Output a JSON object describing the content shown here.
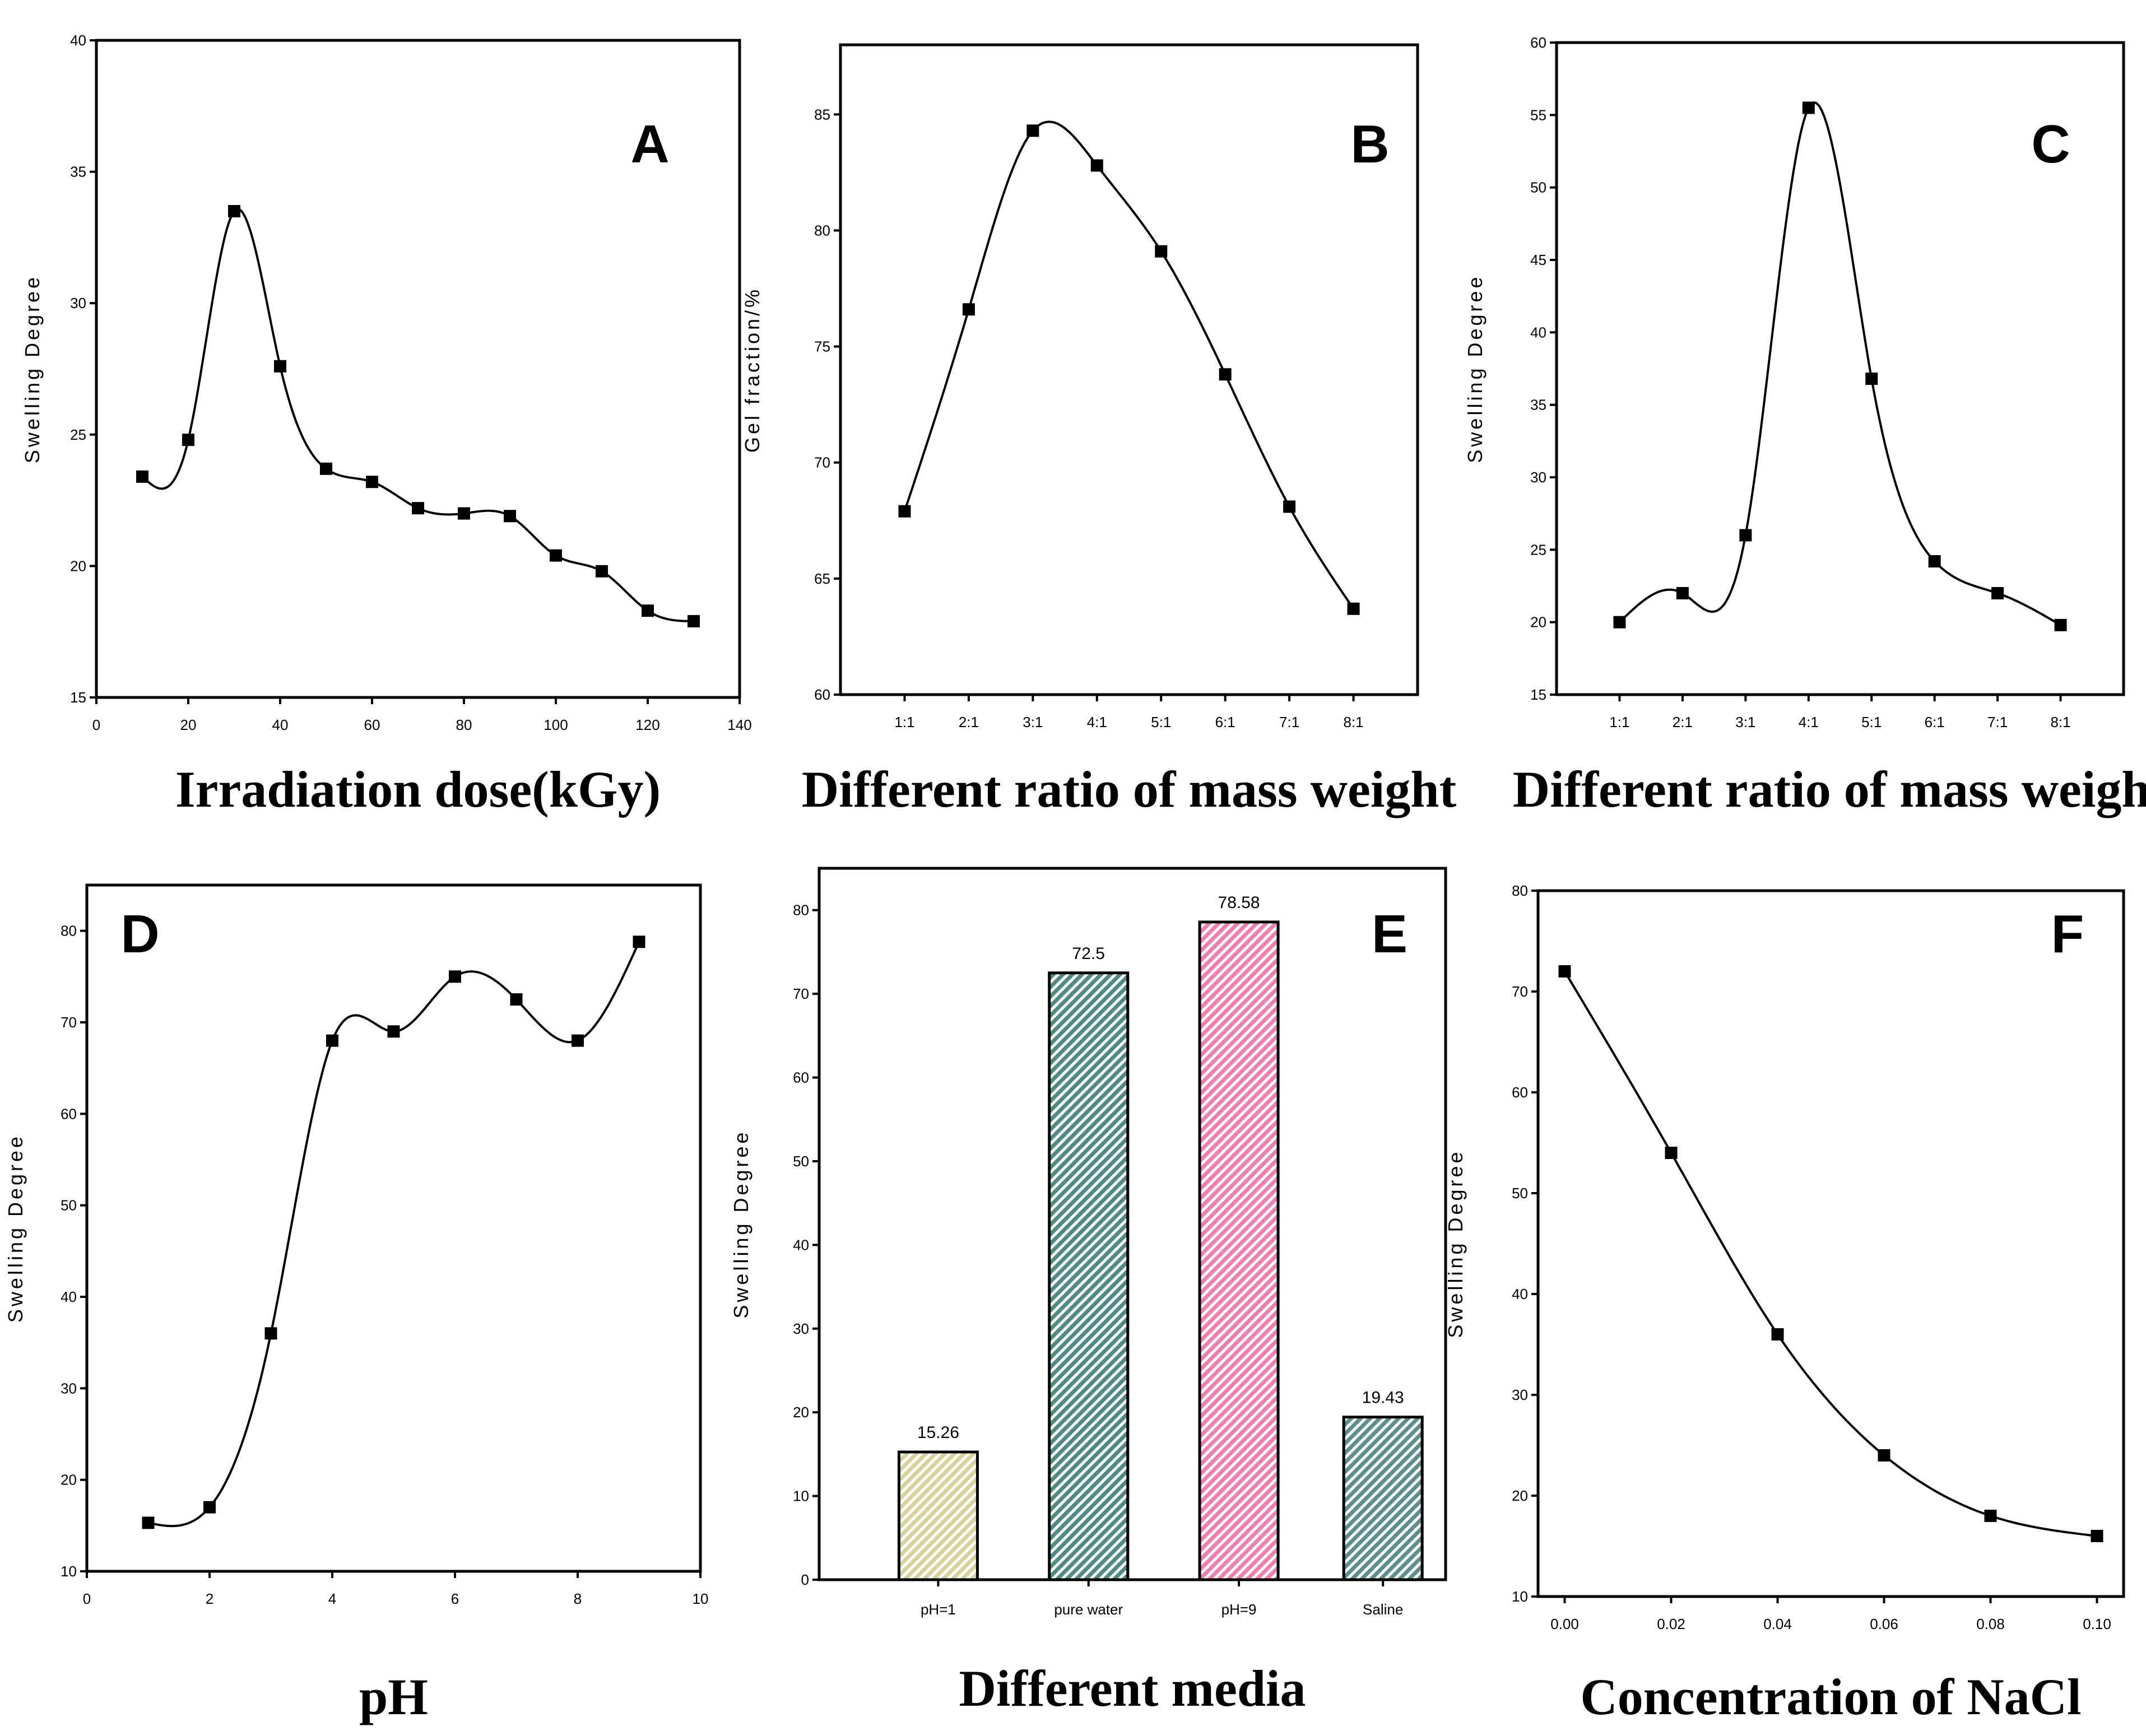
{
  "chart_data": [
    {
      "id": "A",
      "type": "line",
      "letter": "A",
      "ylabel": "Swelling Degree",
      "xlabel": "Irradiation dose(kGy)",
      "xlim": [
        0,
        140
      ],
      "ylim": [
        15,
        40
      ],
      "xticks": [
        0,
        20,
        40,
        60,
        80,
        100,
        120,
        140
      ],
      "yticks": [
        15,
        20,
        25,
        30,
        35,
        40
      ],
      "x": [
        10,
        20,
        30,
        40,
        50,
        60,
        70,
        80,
        90,
        100,
        110,
        120,
        130
      ],
      "y": [
        23.4,
        24.8,
        33.5,
        27.6,
        23.7,
        23.2,
        22.2,
        22.0,
        21.9,
        20.4,
        19.8,
        18.3,
        17.9
      ]
    },
    {
      "id": "B",
      "type": "line",
      "letter": "B",
      "ylabel": "Gel fraction/%",
      "xlabel": "Different ratio of mass weight",
      "xlim": [
        0,
        9
      ],
      "ylim": [
        60,
        88
      ],
      "xticks": [
        1,
        2,
        3,
        4,
        5,
        6,
        7,
        8
      ],
      "xticklabels": [
        "1:1",
        "2:1",
        "3:1",
        "4:1",
        "5:1",
        "6:1",
        "7:1",
        "8:1"
      ],
      "yticks": [
        60,
        65,
        70,
        75,
        80,
        85
      ],
      "x": [
        1,
        2,
        3,
        4,
        5,
        6,
        7,
        8
      ],
      "y": [
        67.9,
        76.6,
        84.3,
        82.8,
        79.1,
        73.8,
        68.1,
        63.7
      ]
    },
    {
      "id": "C",
      "type": "line",
      "letter": "C",
      "ylabel": "Swelling Degree",
      "xlabel": "Different ratio of mass weight",
      "xlim": [
        0,
        9
      ],
      "ylim": [
        15,
        60
      ],
      "xticks": [
        1,
        2,
        3,
        4,
        5,
        6,
        7,
        8
      ],
      "xticklabels": [
        "1:1",
        "2:1",
        "3:1",
        "4:1",
        "5:1",
        "6:1",
        "7:1",
        "8:1"
      ],
      "yticks": [
        15,
        20,
        25,
        30,
        35,
        40,
        45,
        50,
        55,
        60
      ],
      "x": [
        1,
        2,
        3,
        4,
        5,
        6,
        7,
        8
      ],
      "y": [
        20.0,
        22.0,
        26.0,
        55.5,
        36.8,
        24.2,
        22.0,
        19.8
      ]
    },
    {
      "id": "D",
      "type": "line",
      "letter": "D",
      "ylabel": "Swelling Degree",
      "xlabel": "pH",
      "xlim": [
        0,
        10
      ],
      "ylim": [
        10,
        85
      ],
      "xticks": [
        0,
        2,
        4,
        6,
        8,
        10
      ],
      "yticks": [
        10,
        20,
        30,
        40,
        50,
        60,
        70,
        80
      ],
      "x": [
        1,
        2,
        3,
        4,
        5,
        6,
        7,
        8,
        9
      ],
      "y": [
        15.3,
        17.0,
        36.0,
        68.0,
        69.0,
        75.0,
        72.5,
        68.0,
        78.8
      ]
    },
    {
      "id": "E",
      "type": "bar",
      "letter": "E",
      "ylabel": "Swelling Degree",
      "xlabel": "Different media",
      "ylim": [
        0,
        85
      ],
      "yticks": [
        0,
        10,
        20,
        30,
        40,
        50,
        60,
        70,
        80
      ],
      "categories": [
        "pH=1",
        "pure water",
        "pH=9",
        "Saline"
      ],
      "values": [
        15.26,
        72.5,
        78.58,
        19.43
      ],
      "value_labels": [
        "15.26",
        "72.5",
        "78.58",
        "19.43"
      ],
      "bar_colors": [
        "#d9d29a",
        "#4f8a84",
        "#f07fb0",
        "#5d8f8f"
      ]
    },
    {
      "id": "F",
      "type": "line",
      "letter": "F",
      "ylabel": "Swelling Degree",
      "xlabel": "Concentration of NaCl",
      "xlim": [
        -0.005,
        0.105
      ],
      "ylim": [
        10,
        80
      ],
      "xticks": [
        0,
        0.02,
        0.04,
        0.06,
        0.08,
        0.1
      ],
      "xticklabels": [
        "0.00",
        "0.02",
        "0.04",
        "0.06",
        "0.08",
        "0.10"
      ],
      "yticks": [
        10,
        20,
        30,
        40,
        50,
        60,
        70,
        80
      ],
      "x": [
        0,
        0.02,
        0.04,
        0.06,
        0.08,
        0.1
      ],
      "y": [
        72.0,
        54.0,
        36.0,
        24.0,
        18.0,
        16.0
      ]
    }
  ]
}
